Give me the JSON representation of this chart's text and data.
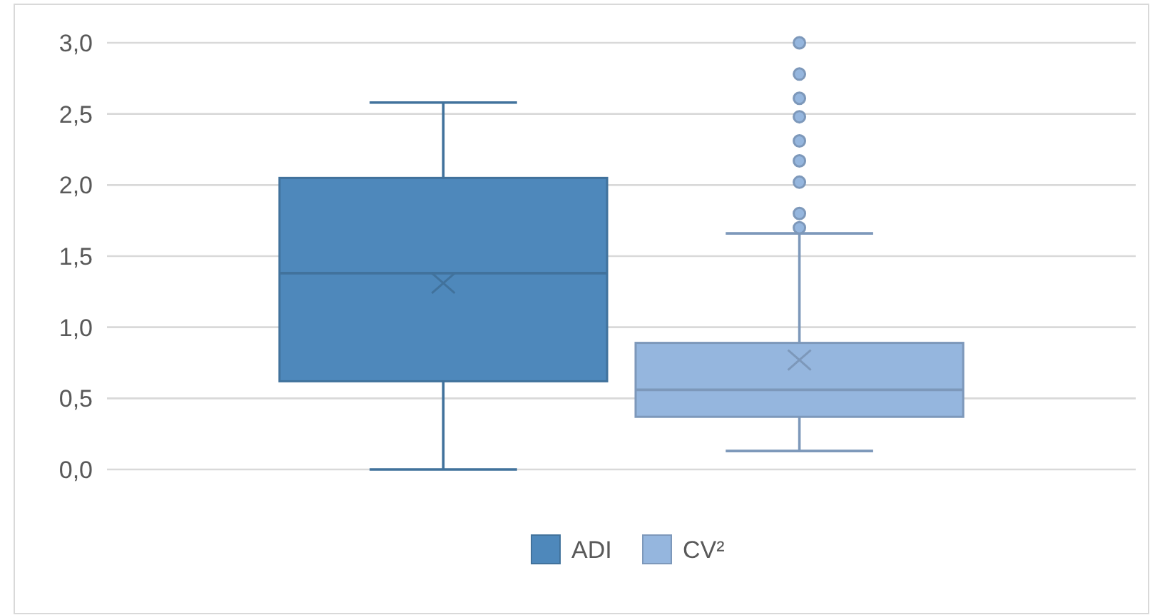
{
  "chart_data": {
    "type": "box",
    "categories": [
      null
    ],
    "series": [
      {
        "name": "ADI",
        "color": "#4e88bb",
        "boxes": [
          {
            "low": 0,
            "q1": 0.62,
            "median": 1.38,
            "q3": 2.05,
            "high": 2.58,
            "mean": 1.31
          }
        ]
      },
      {
        "name": "CV²",
        "color": "#95b6de",
        "boxes": [
          {
            "low": 0.13,
            "q1": 0.37,
            "median": 0.56,
            "q3": 0.89,
            "high": 1.66,
            "mean": 0.77,
            "outliers": [
              1.7,
              1.8,
              2.02,
              2.17,
              2.31,
              2.48,
              2.61,
              2.78,
              3.0
            ]
          }
        ]
      }
    ],
    "ylim": [
      0,
      3
    ],
    "yticks": [
      {
        "value": 0,
        "label": "0,0"
      },
      {
        "value": 0.5,
        "label": "0,5"
      },
      {
        "value": 1,
        "label": "1,0"
      },
      {
        "value": 1.5,
        "label": "1,5"
      },
      {
        "value": 2,
        "label": "2,0"
      },
      {
        "value": 2.5,
        "label": "2,5"
      },
      {
        "value": 3,
        "label": "3,0"
      }
    ],
    "grid": "y",
    "legend": "bottom",
    "marker": "circle"
  }
}
